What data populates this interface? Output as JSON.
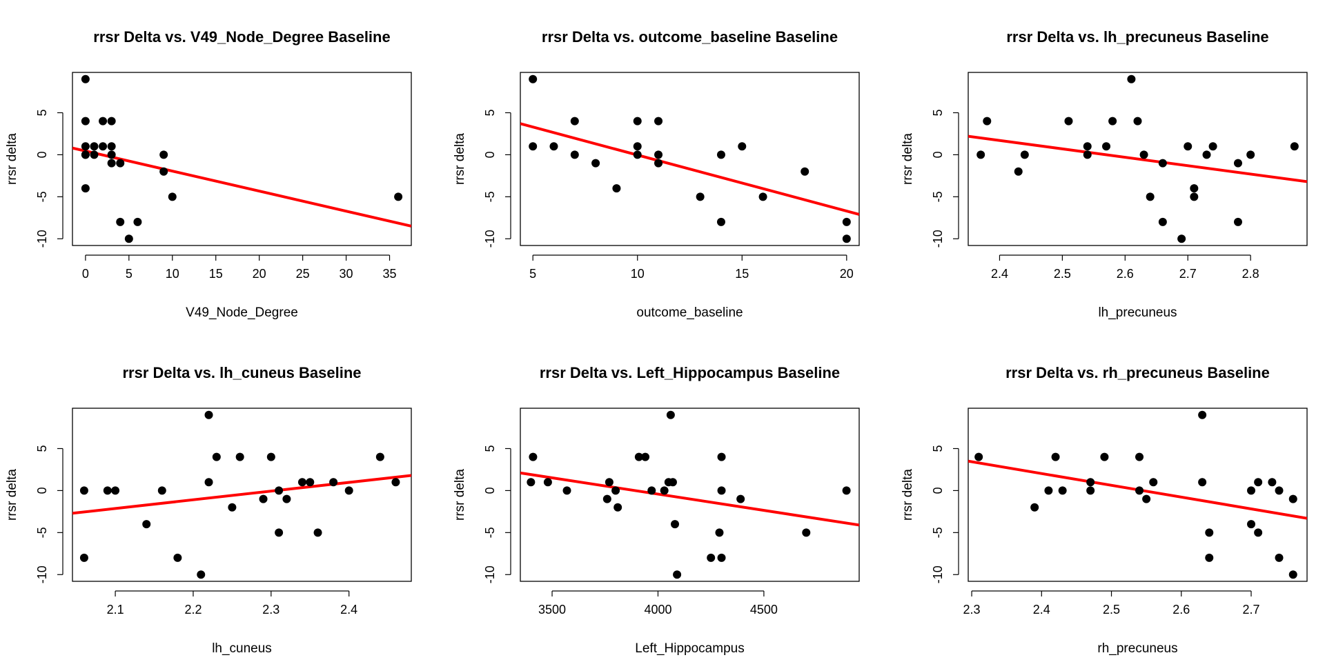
{
  "chart_data": [
    {
      "type": "scatter",
      "title": "rrsr Delta vs. V49_Node_Degree Baseline",
      "xlabel": "V49_Node_Degree",
      "ylabel": "rrsr delta",
      "xlim": [
        -1.5,
        37.5
      ],
      "ylim": [
        -10.8,
        9.8
      ],
      "xticks": [
        0,
        5,
        10,
        15,
        20,
        25,
        30,
        35
      ],
      "yticks": [
        -10,
        -5,
        0,
        5
      ],
      "x": [
        0,
        0,
        0,
        0,
        0,
        0,
        1,
        1,
        2,
        2,
        3,
        3,
        3,
        3,
        4,
        4,
        5,
        6,
        9,
        9,
        10,
        36
      ],
      "y": [
        9,
        4,
        1,
        0,
        -4,
        0,
        1,
        0,
        4,
        1,
        4,
        1,
        0,
        -1,
        -1,
        -8,
        -10,
        -8,
        0,
        -2,
        -5,
        -5
      ],
      "fit": {
        "x": [
          -1.5,
          37.5
        ],
        "y": [
          0.8,
          -8.5
        ]
      },
      "point_color": "#000000",
      "line_color": "#ff0000",
      "grid": false
    },
    {
      "type": "scatter",
      "title": "rrsr Delta vs. outcome_baseline Baseline",
      "xlabel": "outcome_baseline",
      "ylabel": "rrsr delta",
      "xlim": [
        4.4,
        20.6
      ],
      "ylim": [
        -10.8,
        9.8
      ],
      "xticks": [
        5,
        10,
        15,
        20
      ],
      "yticks": [
        -10,
        -5,
        0,
        5
      ],
      "x": [
        5,
        5,
        6,
        7,
        7,
        8,
        9,
        10,
        10,
        10,
        11,
        11,
        11,
        13,
        14,
        14,
        15,
        16,
        18,
        20,
        20
      ],
      "y": [
        9,
        1,
        1,
        4,
        0,
        -1,
        -4,
        4,
        1,
        0,
        4,
        0,
        -1,
        -5,
        0,
        -8,
        1,
        -5,
        -2,
        -8,
        -10
      ],
      "fit": {
        "x": [
          4.4,
          20.6
        ],
        "y": [
          3.7,
          -7.1
        ]
      },
      "point_color": "#000000",
      "line_color": "#ff0000",
      "grid": false
    },
    {
      "type": "scatter",
      "title": "rrsr Delta vs. lh_precuneus Baseline",
      "xlabel": "lh_precuneus",
      "ylabel": "rrsr delta",
      "xlim": [
        2.35,
        2.89
      ],
      "ylim": [
        -10.8,
        9.8
      ],
      "xticks": [
        2.4,
        2.5,
        2.6,
        2.7,
        2.8
      ],
      "yticks": [
        -10,
        -5,
        0,
        5
      ],
      "x": [
        2.37,
        2.38,
        2.43,
        2.44,
        2.51,
        2.54,
        2.54,
        2.57,
        2.58,
        2.61,
        2.62,
        2.63,
        2.64,
        2.66,
        2.66,
        2.69,
        2.7,
        2.71,
        2.71,
        2.73,
        2.74,
        2.78,
        2.78,
        2.8,
        2.87
      ],
      "y": [
        0,
        4,
        -2,
        0,
        4,
        1,
        0,
        1,
        4,
        9,
        4,
        0,
        -5,
        -1,
        -8,
        -10,
        1,
        -4,
        -5,
        0,
        1,
        -1,
        -8,
        0,
        1
      ],
      "fit": {
        "x": [
          2.35,
          2.89
        ],
        "y": [
          2.2,
          -3.2
        ]
      },
      "point_color": "#000000",
      "line_color": "#ff0000",
      "grid": false
    },
    {
      "type": "scatter",
      "title": "rrsr Delta vs. lh_cuneus Baseline",
      "xlabel": "lh_cuneus",
      "ylabel": "rrsr delta",
      "xlim": [
        2.045,
        2.48
      ],
      "ylim": [
        -10.8,
        9.8
      ],
      "xticks": [
        2.1,
        2.2,
        2.3,
        2.4
      ],
      "yticks": [
        -10,
        -5,
        0,
        5
      ],
      "x": [
        2.06,
        2.06,
        2.09,
        2.1,
        2.14,
        2.16,
        2.18,
        2.21,
        2.22,
        2.22,
        2.23,
        2.25,
        2.26,
        2.29,
        2.3,
        2.31,
        2.31,
        2.32,
        2.34,
        2.35,
        2.36,
        2.38,
        2.4,
        2.44,
        2.46
      ],
      "y": [
        0,
        -8,
        0,
        0,
        -4,
        0,
        -8,
        -10,
        1,
        9,
        4,
        -2,
        4,
        -1,
        4,
        -5,
        0,
        -1,
        1,
        1,
        -5,
        1,
        0,
        4,
        1
      ],
      "fit": {
        "x": [
          2.045,
          2.48
        ],
        "y": [
          -2.7,
          1.8
        ]
      },
      "point_color": "#000000",
      "line_color": "#ff0000",
      "grid": false
    },
    {
      "type": "scatter",
      "title": "rrsr Delta vs. Left_Hippocampus Baseline",
      "xlabel": "Left_Hippocampus",
      "ylabel": "rrsr delta",
      "xlim": [
        3350,
        4950
      ],
      "ylim": [
        -10.8,
        9.8
      ],
      "xticks": [
        3500,
        4000,
        4500
      ],
      "yticks": [
        -10,
        -5,
        0,
        5
      ],
      "x": [
        3400,
        3410,
        3480,
        3570,
        3760,
        3770,
        3800,
        3810,
        3910,
        3940,
        3970,
        4030,
        4050,
        4060,
        4070,
        4080,
        4090,
        4250,
        4290,
        4300,
        4300,
        4300,
        4390,
        4700,
        4890
      ],
      "y": [
        1,
        4,
        1,
        0,
        -1,
        1,
        0,
        -2,
        4,
        4,
        0,
        0,
        1,
        9,
        1,
        -4,
        -10,
        -8,
        -5,
        4,
        0,
        -8,
        -1,
        -5,
        0
      ],
      "fit": {
        "x": [
          3350,
          4950
        ],
        "y": [
          2.1,
          -4.1
        ]
      },
      "point_color": "#000000",
      "line_color": "#ff0000",
      "grid": false
    },
    {
      "type": "scatter",
      "title": "rrsr Delta vs. rh_precuneus Baseline",
      "xlabel": "rh_precuneus",
      "ylabel": "rrsr delta",
      "xlim": [
        2.295,
        2.78
      ],
      "ylim": [
        -10.8,
        9.8
      ],
      "xticks": [
        2.3,
        2.4,
        2.5,
        2.6,
        2.7
      ],
      "yticks": [
        -10,
        -5,
        0,
        5
      ],
      "x": [
        2.31,
        2.39,
        2.41,
        2.42,
        2.43,
        2.47,
        2.47,
        2.49,
        2.54,
        2.54,
        2.55,
        2.56,
        2.63,
        2.63,
        2.64,
        2.64,
        2.7,
        2.7,
        2.71,
        2.71,
        2.73,
        2.74,
        2.74,
        2.76,
        2.76
      ],
      "y": [
        4,
        -2,
        0,
        4,
        0,
        1,
        0,
        4,
        0,
        4,
        -1,
        1,
        1,
        9,
        -8,
        -5,
        0,
        -4,
        -5,
        1,
        1,
        0,
        -8,
        -10,
        -1
      ],
      "fit": {
        "x": [
          2.295,
          2.78
        ],
        "y": [
          3.5,
          -3.3
        ]
      },
      "point_color": "#000000",
      "line_color": "#ff0000",
      "grid": false
    }
  ]
}
